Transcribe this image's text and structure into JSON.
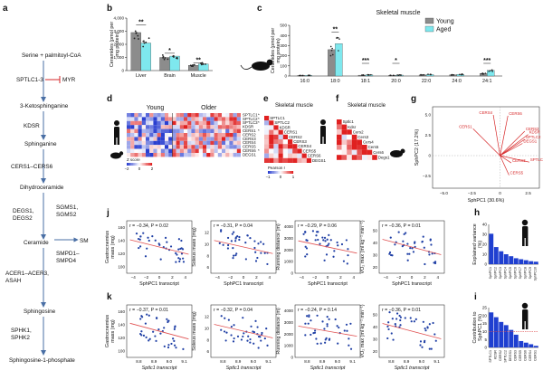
{
  "colors": {
    "young": "#8c8c8c",
    "aged": "#7ee8ee",
    "arrow": "#4a6fa5",
    "block": "#d62728",
    "vector": "#d62728",
    "scatter_point": "#1f3fa5",
    "fit_line": "#e05050",
    "hbar": "#1f3fd0",
    "heat_low": "#2a3fd0",
    "heat_high": "#e02020"
  },
  "panel_letters": {
    "a": "a",
    "b": "b",
    "c": "c",
    "d": "d",
    "e": "e",
    "f": "f",
    "g": "g",
    "h": "h",
    "i": "i",
    "j": "j",
    "k": "k"
  },
  "pathway": {
    "start": "Serine + palmitoyl-CoA",
    "enzyme1": "SPTLC1-3",
    "inhibitor": "MYR",
    "m1": "3-Ketosphinganine",
    "enzyme2": "KDSR",
    "m2": "Sphinganine",
    "enzyme3": "CERS1–CERS6",
    "m3": "Dihydroceramide",
    "enzyme4a": "DEGS1,",
    "enzyme4b": "DEGS2",
    "sm_enz_a": "SGMS1,",
    "sm_enz_b": "SGMS2",
    "ceramide": "Ceramide",
    "sm": "SM",
    "sm_back_a": "SMPD1–",
    "sm_back_b": "SMPD4",
    "enzyme5a": "ACER1–ACER3,",
    "enzyme5b": "ASAH",
    "m4": "Sphingosine",
    "enzyme6a": "SPHK1,",
    "enzyme6b": "SPHK2",
    "m5": "Sphingosine-1-phosphate"
  },
  "chart_data": [
    {
      "id": "b",
      "type": "bar",
      "ylabel_lines": [
        "Ceramides (pmol per",
        "mg protein)"
      ],
      "categories": [
        "Liver",
        "Brain",
        "Muscle"
      ],
      "series": [
        {
          "name": "Young",
          "values": [
            2900,
            1000,
            400
          ]
        },
        {
          "name": "Aged",
          "values": [
            2100,
            1100,
            500
          ]
        }
      ],
      "ylim": [
        0,
        4000
      ],
      "yticks": [
        "0",
        "1,000",
        "2,000",
        "3,000",
        "4,000"
      ],
      "significance": [
        "**",
        "*",
        "**"
      ]
    },
    {
      "id": "c",
      "type": "bar",
      "title": "Skeletal muscle",
      "ylabel_lines": [
        "Ceramides (pmol per",
        "mg protein)"
      ],
      "categories": [
        "16:0",
        "18:0",
        "18:1",
        "20:0",
        "22:0",
        "24:0",
        "24:1"
      ],
      "series": [
        {
          "name": "Young",
          "values": [
            5,
            260,
            8,
            6,
            10,
            12,
            25
          ]
        },
        {
          "name": "Aged",
          "values": [
            6,
            320,
            12,
            9,
            14,
            16,
            55
          ]
        }
      ],
      "ylim": [
        0,
        500
      ],
      "yticks": [
        "0",
        "100",
        "200",
        "300",
        "400",
        "500"
      ],
      "significance": [
        "",
        "**",
        "***",
        "*",
        "",
        "",
        "***"
      ],
      "legend": {
        "placement": "top-left",
        "entries": [
          "Young",
          "Aged"
        ]
      }
    },
    {
      "id": "d",
      "type": "heatmap",
      "group_labels": [
        "Young",
        "Older"
      ],
      "row_labels": [
        "SPTLC1",
        "SPTLC2",
        "SPTLC3",
        "KDSR",
        "CERS1",
        "CERS2",
        "CERS3",
        "CERS4",
        "CERS5",
        "CERS6",
        "DEGS1"
      ],
      "row_marks": [
        "*",
        "*",
        "*",
        "",
        "*",
        "",
        "",
        "",
        "",
        "*",
        ""
      ],
      "cols": 30,
      "colorbar": {
        "title": "Z score",
        "ticks": [
          "−2",
          "0",
          "2"
        ]
      }
    },
    {
      "id": "e",
      "type": "heatmap",
      "title": "Skeletal muscle",
      "row_labels": [
        "SPTLC1",
        "SPTLC2",
        "KDSR",
        "CERS1",
        "CERS2",
        "CERS3",
        "CERS4",
        "CERS5",
        "CERS6",
        "DEGS1"
      ],
      "colorbar": {
        "title": "Pearson r",
        "ticks": [
          "−1",
          "0",
          "1"
        ]
      }
    },
    {
      "id": "f",
      "type": "heatmap",
      "title": "Skeletal muscle",
      "row_labels": [
        "Sptlc1",
        "Kdsr",
        "Cers2",
        "Cers3",
        "Cers4",
        "Cers5",
        "Cers6",
        "Degs1"
      ]
    },
    {
      "id": "g",
      "type": "scatter",
      "xlabel": "SphPC1 (30.6%)",
      "ylabel": "SphPC2 (17.2%)",
      "xlim": [
        -6,
        3.5
      ],
      "ylim": [
        -4,
        6
      ],
      "xticks": [
        -5,
        -2.5,
        0,
        2.5
      ],
      "xtick_labels": [
        "−5.0",
        "−2.5",
        "0",
        "2.5"
      ],
      "yticks": [
        -2.5,
        0,
        2.5,
        5.0
      ],
      "ytick_labels": [
        "−2.5",
        "0",
        "2.5",
        "5.0"
      ],
      "vectors": [
        {
          "name": "CERS1",
          "x": -2.4,
          "y": 3.3
        },
        {
          "name": "CERS4",
          "x": -0.6,
          "y": 5.0
        },
        {
          "name": "CERS6",
          "x": 0.7,
          "y": 4.9
        },
        {
          "name": "CERS2",
          "x": 2.2,
          "y": 3.0
        },
        {
          "name": "KDSR",
          "x": 2.5,
          "y": 2.6
        },
        {
          "name": "SPTLC2",
          "x": 2.2,
          "y": 2.0
        },
        {
          "name": "DEGS1",
          "x": 2.0,
          "y": 1.5
        },
        {
          "name": "SPTLC1",
          "x": 2.6,
          "y": -0.8
        },
        {
          "name": "CERS3",
          "x": 1.0,
          "y": -0.9
        },
        {
          "name": "CERS5",
          "x": 0.8,
          "y": -2.4
        }
      ]
    },
    {
      "id": "h",
      "type": "bar",
      "ylabel_lines": [
        "Explained variance",
        "(%)"
      ],
      "categories": [
        "SphPC1",
        "SphPC2",
        "SphPC3",
        "SphPC4",
        "SphPC5",
        "SphPC6",
        "SphPC7",
        "SphPC8",
        "SphPC9",
        "SphPC10"
      ],
      "values": [
        30.6,
        17.2,
        13,
        10,
        8,
        6,
        5,
        4,
        3,
        2.5
      ],
      "ylim": [
        0,
        40
      ],
      "yticks": [
        "0",
        "10",
        "20",
        "30",
        "40"
      ]
    },
    {
      "id": "i",
      "type": "bar",
      "ylabel_lines": [
        "Contribution to",
        "SphPC1 (%)"
      ],
      "categories": [
        "SPTLC1",
        "KDSR",
        "CERS2",
        "SPTLC2",
        "DEGS1",
        "CERS3",
        "CERS5",
        "CERS6",
        "CERS4",
        "CERS1"
      ],
      "values": [
        22,
        19,
        16,
        14,
        11,
        8,
        4,
        3,
        2,
        1
      ],
      "ylim": [
        0,
        25
      ],
      "yticks": [
        "0",
        "5",
        "10",
        "15",
        "20",
        "25"
      ],
      "reference_line": 10
    },
    {
      "id": "j",
      "type": "scatter",
      "xlabel": "SphPC1 transcript",
      "xlim": [
        -5,
        5
      ],
      "xticks": [
        -4,
        -2,
        0,
        2,
        4
      ],
      "xtick_labels": [
        "−4",
        "−2",
        "0",
        "2",
        "4"
      ],
      "panels": [
        {
          "ylabel": "Gastrocnemius\nmass (mg)",
          "stat": "r = −0.34, P = 0.02",
          "ylim": [
            90,
            170
          ],
          "yticks": [
            100,
            120,
            140,
            160
          ],
          "slope": -0.34
        },
        {
          "ylabel": "Soleus mass (mg)",
          "stat": "r = −0.31, P = 0.04",
          "ylim": [
            5,
            14
          ],
          "yticks": [
            6,
            8,
            10,
            12
          ],
          "slope": -0.31
        },
        {
          "ylabel": "Running distance (m)",
          "stat": "r = −0.29, P = 0.06",
          "ylim": [
            0,
            4500
          ],
          "yticks": [
            0,
            1000,
            2000,
            3000,
            4000
          ],
          "slope": -0.29
        },
        {
          "ylabel": "VO₂ max (ml kg⁻¹ min⁻¹)",
          "stat": "r = −0.36, P = 0.01",
          "ylim": [
            15,
            58
          ],
          "yticks": [
            20,
            30,
            40,
            50
          ],
          "slope": -0.36
        }
      ]
    },
    {
      "id": "k",
      "type": "scatter",
      "xlabel": "Sptlc1 transcript",
      "xlim": [
        8.72,
        9.15
      ],
      "xticks": [
        8.8,
        8.9,
        9.0,
        9.1
      ],
      "xtick_labels": [
        "8.8",
        "8.9",
        "9.0",
        "9.1"
      ],
      "panels": [
        {
          "ylabel": "Gastrocnemius\nmass (mg)",
          "stat": "r = −0.37, P = 0.01",
          "ylim": [
            90,
            170
          ],
          "yticks": [
            100,
            120,
            140,
            160
          ],
          "slope": -0.37
        },
        {
          "ylabel": "Soleus mass (mg)",
          "stat": "r = −0.32, P = 0.04",
          "ylim": [
            5,
            14
          ],
          "yticks": [
            6,
            8,
            10,
            12
          ],
          "slope": -0.32
        },
        {
          "ylabel": "Running distance (m)",
          "stat": "r = −0.24, P = 0.14",
          "ylim": [
            0,
            4500
          ],
          "yticks": [
            0,
            1000,
            2000,
            3000,
            4000
          ],
          "slope": -0.24
        },
        {
          "ylabel": "VO₂ max (ml kg⁻¹ min⁻¹)",
          "stat": "r = −0.36, P = 0.01",
          "ylim": [
            15,
            58
          ],
          "yticks": [
            20,
            30,
            40,
            50
          ],
          "slope": -0.36
        }
      ]
    }
  ]
}
